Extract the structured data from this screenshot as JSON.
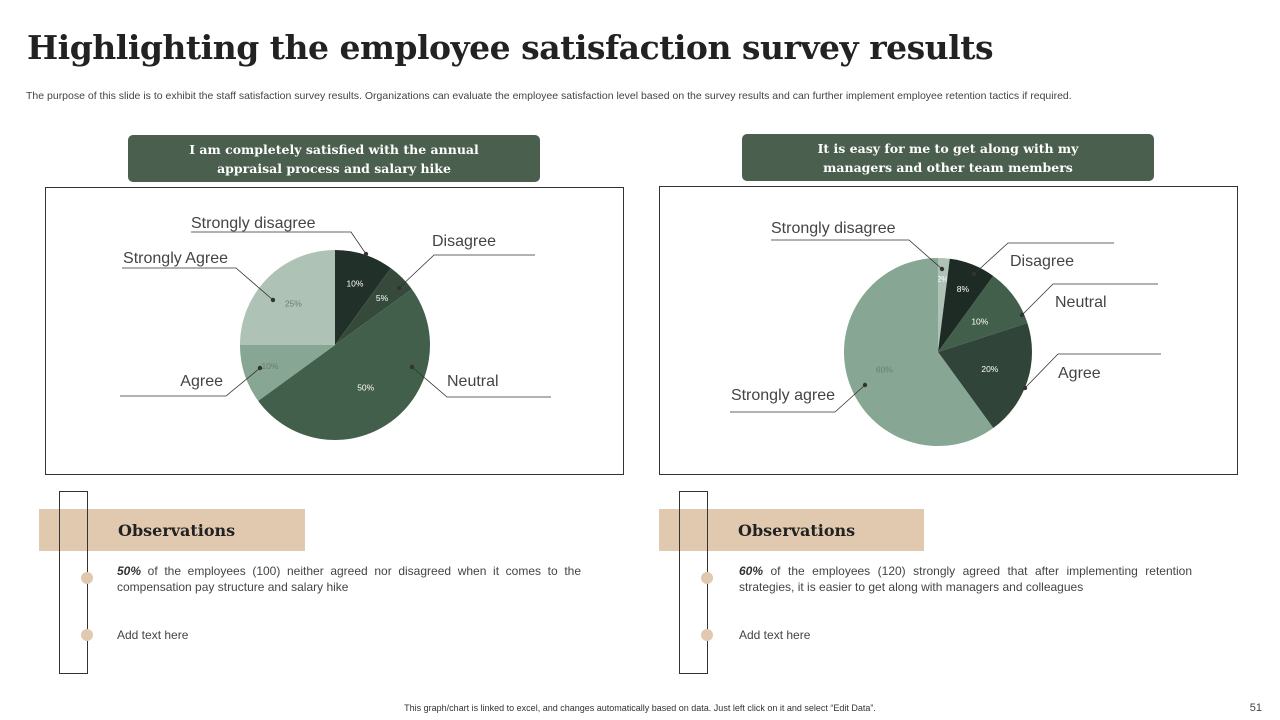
{
  "slide": {
    "title": "Highlighting the employee satisfaction survey results",
    "subtitle": "The purpose of this slide is to exhibit the staff satisfaction survey results. Organizations can evaluate the employee satisfaction level based on the survey results and can further implement employee retention tactics if required.",
    "footer": "This graph/chart is linked to excel, and changes automatically based on data. Just left click on it and select “Edit Data”.",
    "page_number": "51"
  },
  "colors": {
    "header_green": "#4a5f4e",
    "observation_tan": "#e0c9ae"
  },
  "left": {
    "question": "I am completely satisfied with the annual appraisal process and salary hike",
    "observation_title": "Observations",
    "observation_highlight": "50%",
    "observation_text": " of the employees (100) neither agreed nor disagreed when it comes to the compensation pay structure and salary hike",
    "add_text": "Add text here"
  },
  "right": {
    "question": "It is easy for me to get along with my managers and other team members",
    "observation_title": "Observations",
    "observation_highlight": "60%",
    "observation_text": " of the employees (120) strongly agreed that after implementing retention strategies, it is easier to get along with managers and colleagues",
    "add_text": "Add text here"
  },
  "chart_data": [
    {
      "type": "pie",
      "slices": [
        {
          "label": "Strongly disagree",
          "value": 10,
          "value_label": "10%",
          "color": "#22302a"
        },
        {
          "label": "Disagree",
          "value": 5,
          "value_label": "5%",
          "color": "#364a3c"
        },
        {
          "label": "Neutral",
          "value": 50,
          "value_label": "50%",
          "color": "#425f4b"
        },
        {
          "label": "Agree",
          "value": 10,
          "value_label": "10%",
          "color": "#87a693"
        },
        {
          "label": "Strongly Agree",
          "value": 25,
          "value_label": "25%",
          "color": "#aec2b5"
        }
      ]
    },
    {
      "type": "pie",
      "slices": [
        {
          "label": "Strongly disagree",
          "value": 2,
          "value_label": "2%",
          "color": "#aec2b5"
        },
        {
          "label": "Disagree",
          "value": 8,
          "value_label": "8%",
          "color": "#1e2a24"
        },
        {
          "label": "Neutral",
          "value": 10,
          "value_label": "10%",
          "color": "#425f4b"
        },
        {
          "label": "Agree",
          "value": 20,
          "value_label": "20%",
          "color": "#31443a"
        },
        {
          "label": "Strongly agree",
          "value": 60,
          "value_label": "60%",
          "color": "#87a693"
        }
      ]
    }
  ]
}
